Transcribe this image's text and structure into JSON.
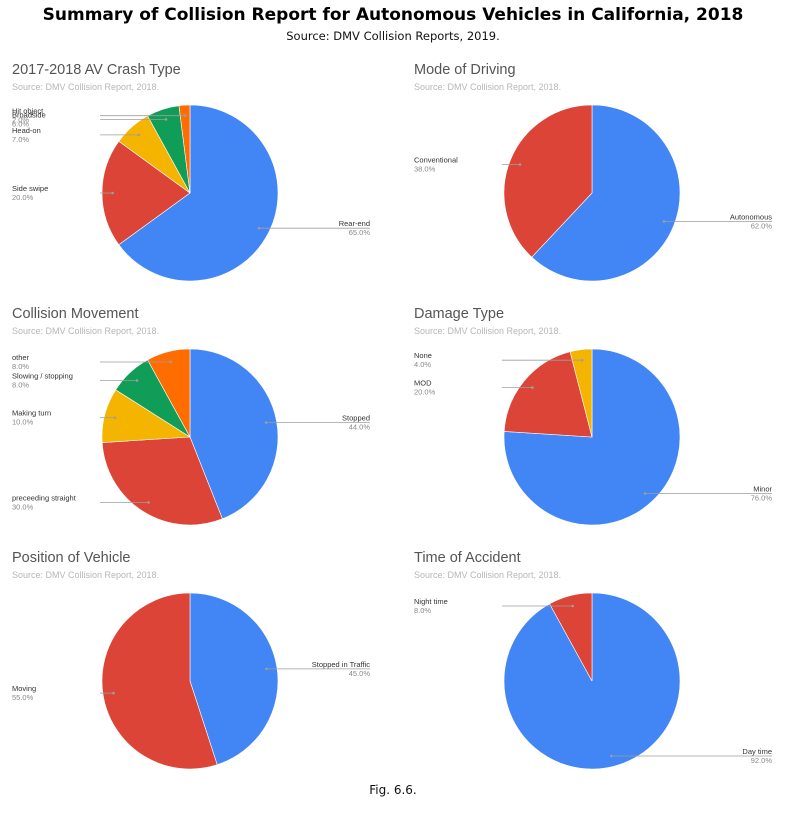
{
  "title": "Summary of Collision Report for Autonomous Vehicles in California, 2018",
  "subtitle": "Source: DMV Collision Reports, 2019.",
  "caption": "Fig. 6.6.",
  "colors": {
    "blue": "#4285f4",
    "red": "#db4437",
    "yellow": "#f4b400",
    "green": "#0f9d58",
    "orange": "#ff6d01"
  },
  "chart_data": [
    {
      "type": "pie",
      "title": "2017-2018 AV Crash Type",
      "source": "Source: DMV Collision Report, 2018.",
      "slices": [
        {
          "label": "Rear-end",
          "value": 65.0,
          "pct": "65.0%",
          "color": "#4285f4"
        },
        {
          "label": "Side swipe",
          "value": 20.0,
          "pct": "20.0%",
          "color": "#db4437"
        },
        {
          "label": "Head-on",
          "value": 7.0,
          "pct": "7.0%",
          "color": "#f4b400"
        },
        {
          "label": "Broadside",
          "value": 6.0,
          "pct": "6.0%",
          "color": "#0f9d58"
        },
        {
          "label": "Hit object",
          "value": 2.0,
          "pct": "2.0%",
          "color": "#ff6d01"
        }
      ]
    },
    {
      "type": "pie",
      "title": "Mode of Driving",
      "source": "Source: DMV Collision Report, 2018.",
      "slices": [
        {
          "label": "Autonomous",
          "value": 62.0,
          "pct": "62.0%",
          "color": "#4285f4"
        },
        {
          "label": "Conventional",
          "value": 38.0,
          "pct": "38.0%",
          "color": "#db4437"
        }
      ]
    },
    {
      "type": "pie",
      "title": "Collision Movement",
      "source": "Source: DMV Collision Report, 2018.",
      "slices": [
        {
          "label": "Stopped",
          "value": 44.0,
          "pct": "44.0%",
          "color": "#4285f4"
        },
        {
          "label": "preceeding straight",
          "value": 30.0,
          "pct": "30.0%",
          "color": "#db4437"
        },
        {
          "label": "Making turn",
          "value": 10.0,
          "pct": "10.0%",
          "color": "#f4b400"
        },
        {
          "label": "Slowing / stopping",
          "value": 8.0,
          "pct": "8.0%",
          "color": "#0f9d58"
        },
        {
          "label": "other",
          "value": 8.0,
          "pct": "8.0%",
          "color": "#ff6d01"
        }
      ]
    },
    {
      "type": "pie",
      "title": "Damage Type",
      "source": "Source: DMV Collision Report, 2018.",
      "slices": [
        {
          "label": "Minor",
          "value": 76.0,
          "pct": "76.0%",
          "color": "#4285f4"
        },
        {
          "label": "MOD",
          "value": 20.0,
          "pct": "20.0%",
          "color": "#db4437"
        },
        {
          "label": "None",
          "value": 4.0,
          "pct": "4.0%",
          "color": "#f4b400"
        }
      ]
    },
    {
      "type": "pie",
      "title": "Position of Vehicle",
      "source": "Source: DMV Collision Report, 2018.",
      "slices": [
        {
          "label": "Stopped in Traffic",
          "value": 45.0,
          "pct": "45.0%",
          "color": "#4285f4"
        },
        {
          "label": "Moving",
          "value": 55.0,
          "pct": "55.0%",
          "color": "#db4437"
        }
      ]
    },
    {
      "type": "pie",
      "title": "Time of Accident",
      "source": "Source: DMV Collision Report, 2018.",
      "slices": [
        {
          "label": "Day time",
          "value": 92.0,
          "pct": "92.0%",
          "color": "#4285f4"
        },
        {
          "label": "Night time",
          "value": 8.0,
          "pct": "8.0%",
          "color": "#db4437"
        }
      ]
    }
  ]
}
